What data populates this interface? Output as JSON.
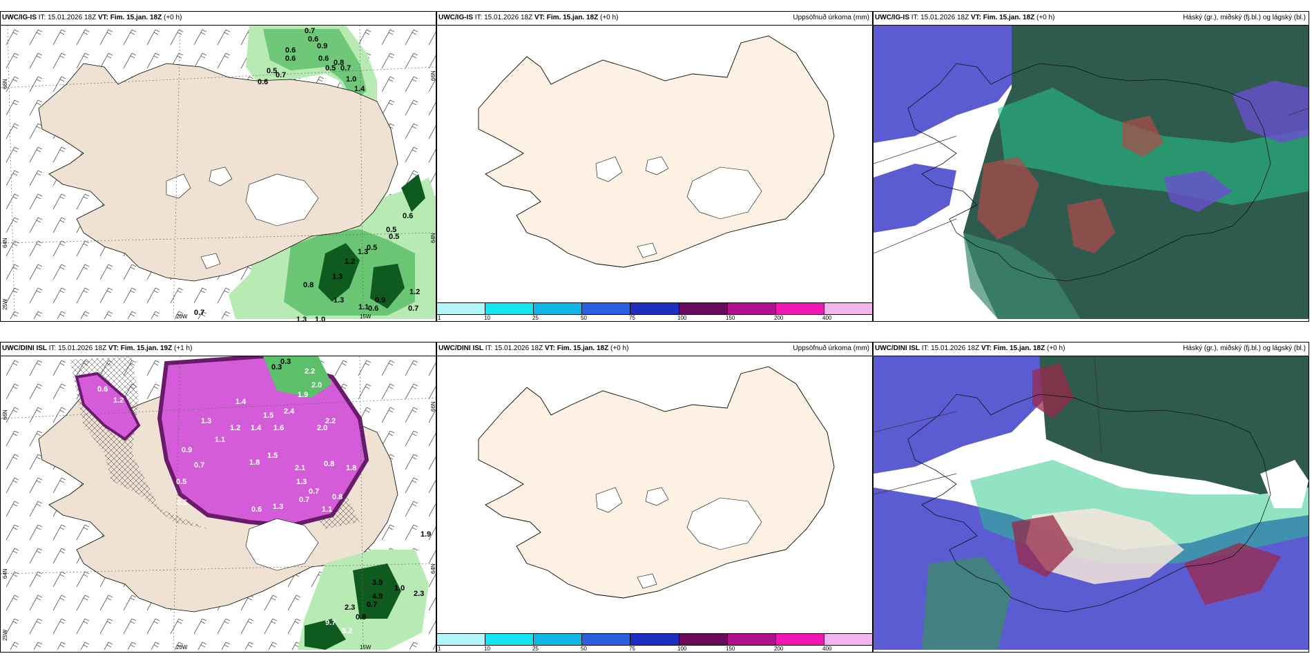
{
  "panels": [
    {
      "id": "p1",
      "model": "UWC/IG-IS",
      "it_label": "IT:",
      "it_value": "15.01.2026 18Z",
      "vt_label": "VT:",
      "vt_value": "Fim. 15.jan. 18Z",
      "offset": "(+0 h)",
      "lat_labels": [
        "66N",
        "64N",
        "25W"
      ],
      "lon_labels": [
        "20W",
        "15W"
      ],
      "right_labels": [
        "66N",
        "64N"
      ],
      "values": [
        {
          "t": "0.6"
        },
        {
          "t": "0.7"
        },
        {
          "t": "0.6"
        },
        {
          "t": "0.9"
        },
        {
          "t": "0.6"
        },
        {
          "t": "0.5"
        },
        {
          "t": "0.6"
        },
        {
          "t": "0.6"
        },
        {
          "t": "0.7"
        },
        {
          "t": "0.7"
        },
        {
          "t": "0.5"
        },
        {
          "t": "0.8"
        },
        {
          "t": "1.0"
        },
        {
          "t": "1.4"
        },
        {
          "t": "0.6"
        },
        {
          "t": "0.5"
        },
        {
          "t": "0.5"
        },
        {
          "t": "0.5"
        },
        {
          "t": "1.2"
        },
        {
          "t": "1.3"
        },
        {
          "t": "0.8"
        },
        {
          "t": "1.3"
        },
        {
          "t": "0.9"
        },
        {
          "t": "1.1"
        },
        {
          "t": "0.6"
        },
        {
          "t": "0.7"
        },
        {
          "t": "1.2"
        },
        {
          "t": "1.3"
        },
        {
          "t": "0.7"
        },
        {
          "t": "1.0"
        },
        {
          "t": "1.3"
        }
      ]
    },
    {
      "id": "p2",
      "model": "UWC/IG-IS",
      "it_label": "IT:",
      "it_value": "15.01.2026 18Z",
      "vt_label": "VT:",
      "vt_value": "Fim. 15.jan. 18Z",
      "offset": "(+0 h)",
      "right_title": "Uppsöfnuð úrkoma (mm)"
    },
    {
      "id": "p3",
      "model": "UWC/IG-IS",
      "it_label": "IT:",
      "it_value": "15.01.2026 18Z",
      "vt_label": "VT:",
      "vt_value": "Fim. 15.jan. 18Z",
      "offset": "(+0 h)",
      "right_title": "Háský (gr.), miðský (fj.bl.) og lágský (bl.)"
    },
    {
      "id": "p4",
      "model": "UWC/DINI ISL",
      "it_label": "IT:",
      "it_value": "15.01.2026 18Z",
      "vt_label": "VT:",
      "vt_value": "Fim. 15.jan. 19Z",
      "offset": "(+1 h)",
      "lat_labels": [
        "66N",
        "64N",
        "25W"
      ],
      "lon_labels": [
        "20W",
        "15W"
      ],
      "right_labels": [
        "66N",
        "64N"
      ],
      "values": [
        {
          "t": "0.3"
        },
        {
          "t": "0.3"
        },
        {
          "t": "2.2"
        },
        {
          "t": "2.0"
        },
        {
          "t": "1.9"
        },
        {
          "t": "1.4"
        },
        {
          "t": "1.5"
        },
        {
          "t": "2.4"
        },
        {
          "t": "1.4"
        },
        {
          "t": "2.2"
        },
        {
          "t": "1.3"
        },
        {
          "t": "1.2"
        },
        {
          "t": "1.6"
        },
        {
          "t": "2.0"
        },
        {
          "t": "1.1"
        },
        {
          "t": "0.9"
        },
        {
          "t": "1.5"
        },
        {
          "t": "1.8"
        },
        {
          "t": "0.7"
        },
        {
          "t": "2.1"
        },
        {
          "t": "0.8"
        },
        {
          "t": "0.5"
        },
        {
          "t": "1.3"
        },
        {
          "t": "0.7"
        },
        {
          "t": "0.6"
        },
        {
          "t": "1.1"
        },
        {
          "t": "0.8"
        },
        {
          "t": "1.3"
        },
        {
          "t": "0.7"
        },
        {
          "t": "1.8"
        },
        {
          "t": "0.5"
        },
        {
          "t": "1.2"
        },
        {
          "t": "0.6"
        },
        {
          "t": "1.9"
        },
        {
          "t": "3.9"
        },
        {
          "t": "1.0"
        },
        {
          "t": "4.9"
        },
        {
          "t": "2.3"
        },
        {
          "t": "0.7"
        },
        {
          "t": "2.3"
        },
        {
          "t": "0.8"
        },
        {
          "t": "9.7"
        },
        {
          "t": "5.2"
        }
      ]
    },
    {
      "id": "p5",
      "model": "UWC/DINI ISL",
      "it_label": "IT:",
      "it_value": "15.01.2026 18Z",
      "vt_label": "VT:",
      "vt_value": "Fim. 15.jan. 18Z",
      "offset": "(+0 h)",
      "right_title": "Uppsöfnuð úrkoma (mm)"
    },
    {
      "id": "p6",
      "model": "UWC/DINI ISL",
      "it_label": "IT:",
      "it_value": "15.01.2026 18Z",
      "vt_label": "VT:",
      "vt_value": "Fim. 15.jan. 18Z",
      "offset": "(+0 h)",
      "right_title": "Háský (gr.), miðský (fj.bl.) og lágský (bl.)"
    }
  ],
  "colorbar": {
    "labels": [
      "1",
      "10",
      "25",
      "50",
      "75",
      "100",
      "150",
      "200",
      "400"
    ],
    "colors": [
      "#b3f6f8",
      "#14e6f0",
      "#0fb6e6",
      "#2a5fe0",
      "#1e2ec0",
      "#6a0a5a",
      "#b4108e",
      "#f018b4",
      "#f4b4ee"
    ]
  },
  "colors": {
    "land": "#f0e2d2",
    "land_pale": "#fdf1e4",
    "green_light": "#b8eab4",
    "green_mid": "#5cbf6a",
    "green_dark": "#0e5a1f",
    "magenta": "#d45cd8",
    "magenta_dark": "#6a1a6a",
    "cloud_high": "#2f5a4e",
    "cloud_mid": "#24c88a",
    "cloud_low": "#5b5bd2"
  }
}
